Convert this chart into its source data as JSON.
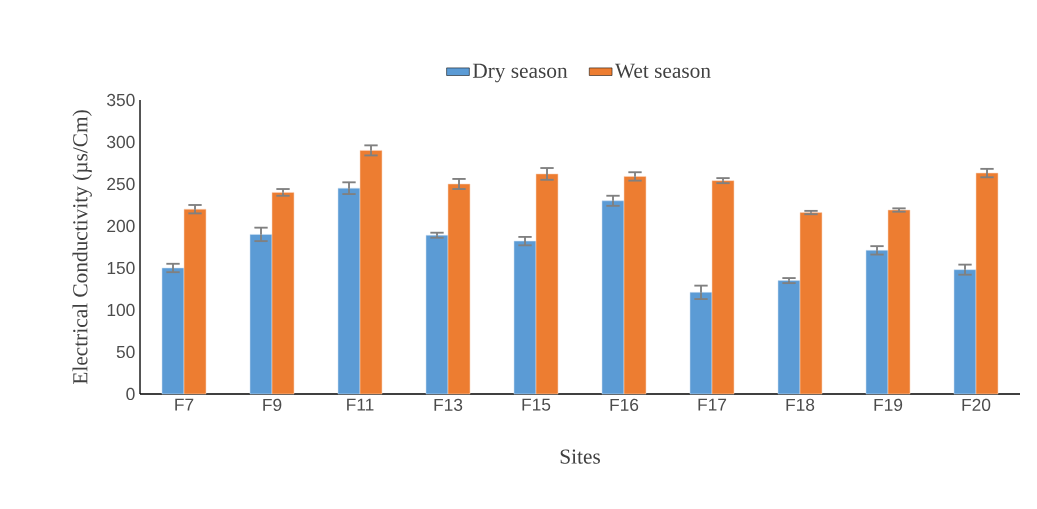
{
  "chart_data": {
    "type": "bar",
    "xlabel": "Sites",
    "ylabel": "Electrical Conductivity (µs/Cm)",
    "categories": [
      "F7",
      "F9",
      "F11",
      "F13",
      "F15",
      "F16",
      "F17",
      "F18",
      "F19",
      "F20"
    ],
    "series": [
      {
        "name": "Dry season",
        "color": "#5b9bd5",
        "values": [
          150,
          190,
          245,
          189,
          182,
          230,
          121,
          135,
          171,
          148
        ],
        "errors": [
          5,
          8,
          7,
          3,
          5,
          6,
          8,
          3,
          5,
          6
        ]
      },
      {
        "name": "Wet season",
        "color": "#ed7d31",
        "values": [
          220,
          240,
          290,
          250,
          262,
          259,
          254,
          216,
          219,
          263
        ],
        "errors": [
          5,
          4,
          6,
          6,
          7,
          5,
          3,
          2,
          2,
          5
        ]
      }
    ],
    "ylim": [
      0,
      350
    ],
    "yticks": [
      0,
      50,
      100,
      150,
      200,
      250,
      300,
      350
    ],
    "grid": false,
    "legend": "top"
  }
}
